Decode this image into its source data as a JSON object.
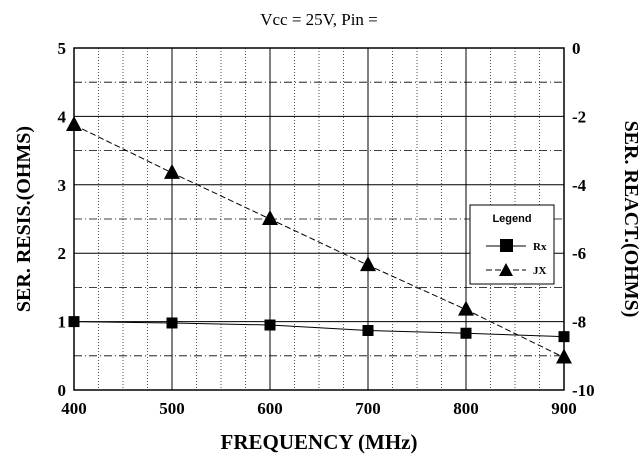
{
  "chart_data": {
    "type": "line",
    "title": "Vcc = 25V, Pin =",
    "xlabel": "FREQUENCY (MHz)",
    "ylabel_left": "SER. RESIS.(OHMS)",
    "ylabel_right": "SER. REACT.(OHMS)",
    "x": [
      400,
      500,
      600,
      700,
      800,
      900
    ],
    "x_ticks": [
      "400",
      "500",
      "600",
      "700",
      "800",
      "900"
    ],
    "xlim": [
      400,
      900
    ],
    "y_left_ticks": [
      "0",
      "1",
      "2",
      "3",
      "4",
      "5"
    ],
    "ylim_left": [
      0,
      5
    ],
    "y_right_ticks": [
      "0",
      "-2",
      "-4",
      "-6",
      "-8",
      "-10"
    ],
    "ylim_right": [
      -10,
      0
    ],
    "grid": true,
    "legend": {
      "title": "Legend",
      "placement": "right"
    },
    "series": [
      {
        "name": "Rx",
        "axis": "left",
        "marker": "square",
        "line_style": "solid",
        "values": [
          1.0,
          0.98,
          0.95,
          0.87,
          0.83,
          0.78
        ]
      },
      {
        "name": "JX",
        "axis": "right",
        "marker": "triangle",
        "line_style": "dashed",
        "values": [
          -2.25,
          -3.65,
          -5.0,
          -6.35,
          -7.65,
          -9.05
        ]
      }
    ]
  }
}
